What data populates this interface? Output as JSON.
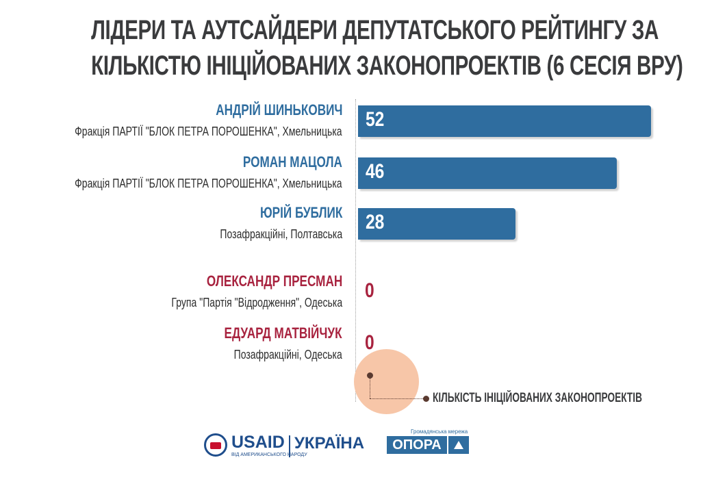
{
  "title_line1": "ЛІДЕРИ ТА АУТСАЙДЕРИ ДЕПУТАТСЬКОГО РЕЙТИНГУ ЗА",
  "title_line2": "КІЛЬКІСТЮ ІНІЦІЙОВАНИХ ЗАКОНОПРОЕКТІВ (6 СЕСІЯ ВРУ)",
  "colors": {
    "leader": "#2f6d9f",
    "outsider": "#a8233f",
    "bar": "#2f6d9f",
    "legend_circle": "#f7c6a8"
  },
  "chart_data": {
    "type": "bar",
    "orientation": "horizontal",
    "title": "ЛІДЕРИ ТА АУТСАЙДЕРИ ДЕПУТАТСЬКОГО РЕЙТИНГУ ЗА КІЛЬКІСТЮ ІНІЦІЙОВАНИХ ЗАКОНОПРОЕКТІВ (6 СЕСІЯ ВРУ)",
    "xlim": [
      0,
      54
    ],
    "rows": [
      {
        "name": "АНДРІЙ ШИНЬКОВИЧ",
        "sub": "Фракція ПАРТІЇ \"БЛОК ПЕТРА ПОРОШЕНКА\", Хмельницька",
        "value": 52,
        "label": "52",
        "group": "leader"
      },
      {
        "name": "РОМАН МАЦОЛА",
        "sub": "Фракція ПАРТІЇ \"БЛОК ПЕТРА ПОРОШЕНКА\", Хмельницька",
        "value": 46,
        "label": "46",
        "group": "leader"
      },
      {
        "name": "ЮРІЙ БУБЛИК",
        "sub": "Позафракційні, Полтавська",
        "value": 28,
        "label": "28",
        "group": "leader"
      },
      {
        "name": "ОЛЕКСАНДР ПРЕСМАН",
        "sub": "Група \"Партія \"Відродження\", Одеська",
        "value": 0,
        "label": "0",
        "group": "outsider"
      },
      {
        "name": "ЕДУАРД МАТВІЙЧУК",
        "sub": "Позафракційні, Одеська",
        "value": 0,
        "label": "0",
        "group": "outsider"
      }
    ],
    "legend": "КІЛЬКІСТЬ ІНІЦІЙОВАНИХ ЗАКОНОПРОЕКТІВ"
  },
  "footer": {
    "usaid": "USAID",
    "usaid_sub": "ВІД АМЕРИКАНСЬКОГО НАРОДУ",
    "usaid_country": "УКРАЇНА",
    "opora_tag": "Громадянська мережа",
    "opora": "ОПОРА"
  }
}
